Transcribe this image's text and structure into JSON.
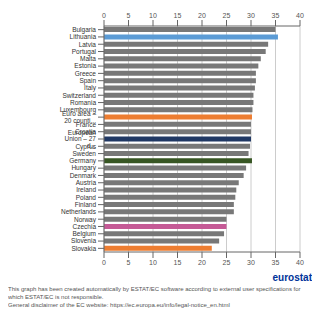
{
  "chart_data": {
    "type": "bar",
    "orientation": "horizontal",
    "categories": [
      "Bulgaria",
      "Lithuania",
      "Latvia",
      "Portugal",
      "Malta",
      "Estonia",
      "Greece",
      "Spain",
      "Italy",
      "Switzerland",
      "Romania",
      "Luxembourg",
      "Euro area – 20 counti...",
      "France",
      "Croatia",
      "European Union – 27 d...",
      "Cyprus",
      "Sweden",
      "Germany",
      "Hungary",
      "Denmark",
      "Austria",
      "Ireland",
      "Poland",
      "Finland",
      "Netherlands",
      "Norway",
      "Czechia",
      "Belgium",
      "Slovenia",
      "Slovakia"
    ],
    "values": [
      35.0,
      35.5,
      33.5,
      33.0,
      32.0,
      31.5,
      31.0,
      31.0,
      30.8,
      30.5,
      30.5,
      30.3,
      30.2,
      30.0,
      30.0,
      30.0,
      29.8,
      29.5,
      30.2,
      29.0,
      28.5,
      27.5,
      27.0,
      26.8,
      26.5,
      26.5,
      25.0,
      25.0,
      24.5,
      23.5,
      22.0
    ],
    "colors": [
      "#787878",
      "#5b9bd5",
      "#787878",
      "#787878",
      "#787878",
      "#787878",
      "#787878",
      "#787878",
      "#787878",
      "#787878",
      "#787878",
      "#787878",
      "#ed7d31",
      "#787878",
      "#787878",
      "#203864",
      "#787878",
      "#787878",
      "#375623",
      "#787878",
      "#787878",
      "#787878",
      "#787878",
      "#787878",
      "#787878",
      "#787878",
      "#787878",
      "#c55a96",
      "#787878",
      "#787878",
      "#ed7d31"
    ],
    "xlim": [
      0,
      40
    ],
    "xticks": [
      0,
      5,
      10,
      15,
      20,
      25,
      30,
      35,
      40
    ],
    "grid": true,
    "annotations": [
      "eurostat",
      "This graph has been created automatically by ESTAT/EC software according to external user specifications for which ESTAT/EC is not responsible.\nGeneral disclaimer of the EC website: https://ec.europa.eu/info/legal-notice_en.html"
    ]
  }
}
